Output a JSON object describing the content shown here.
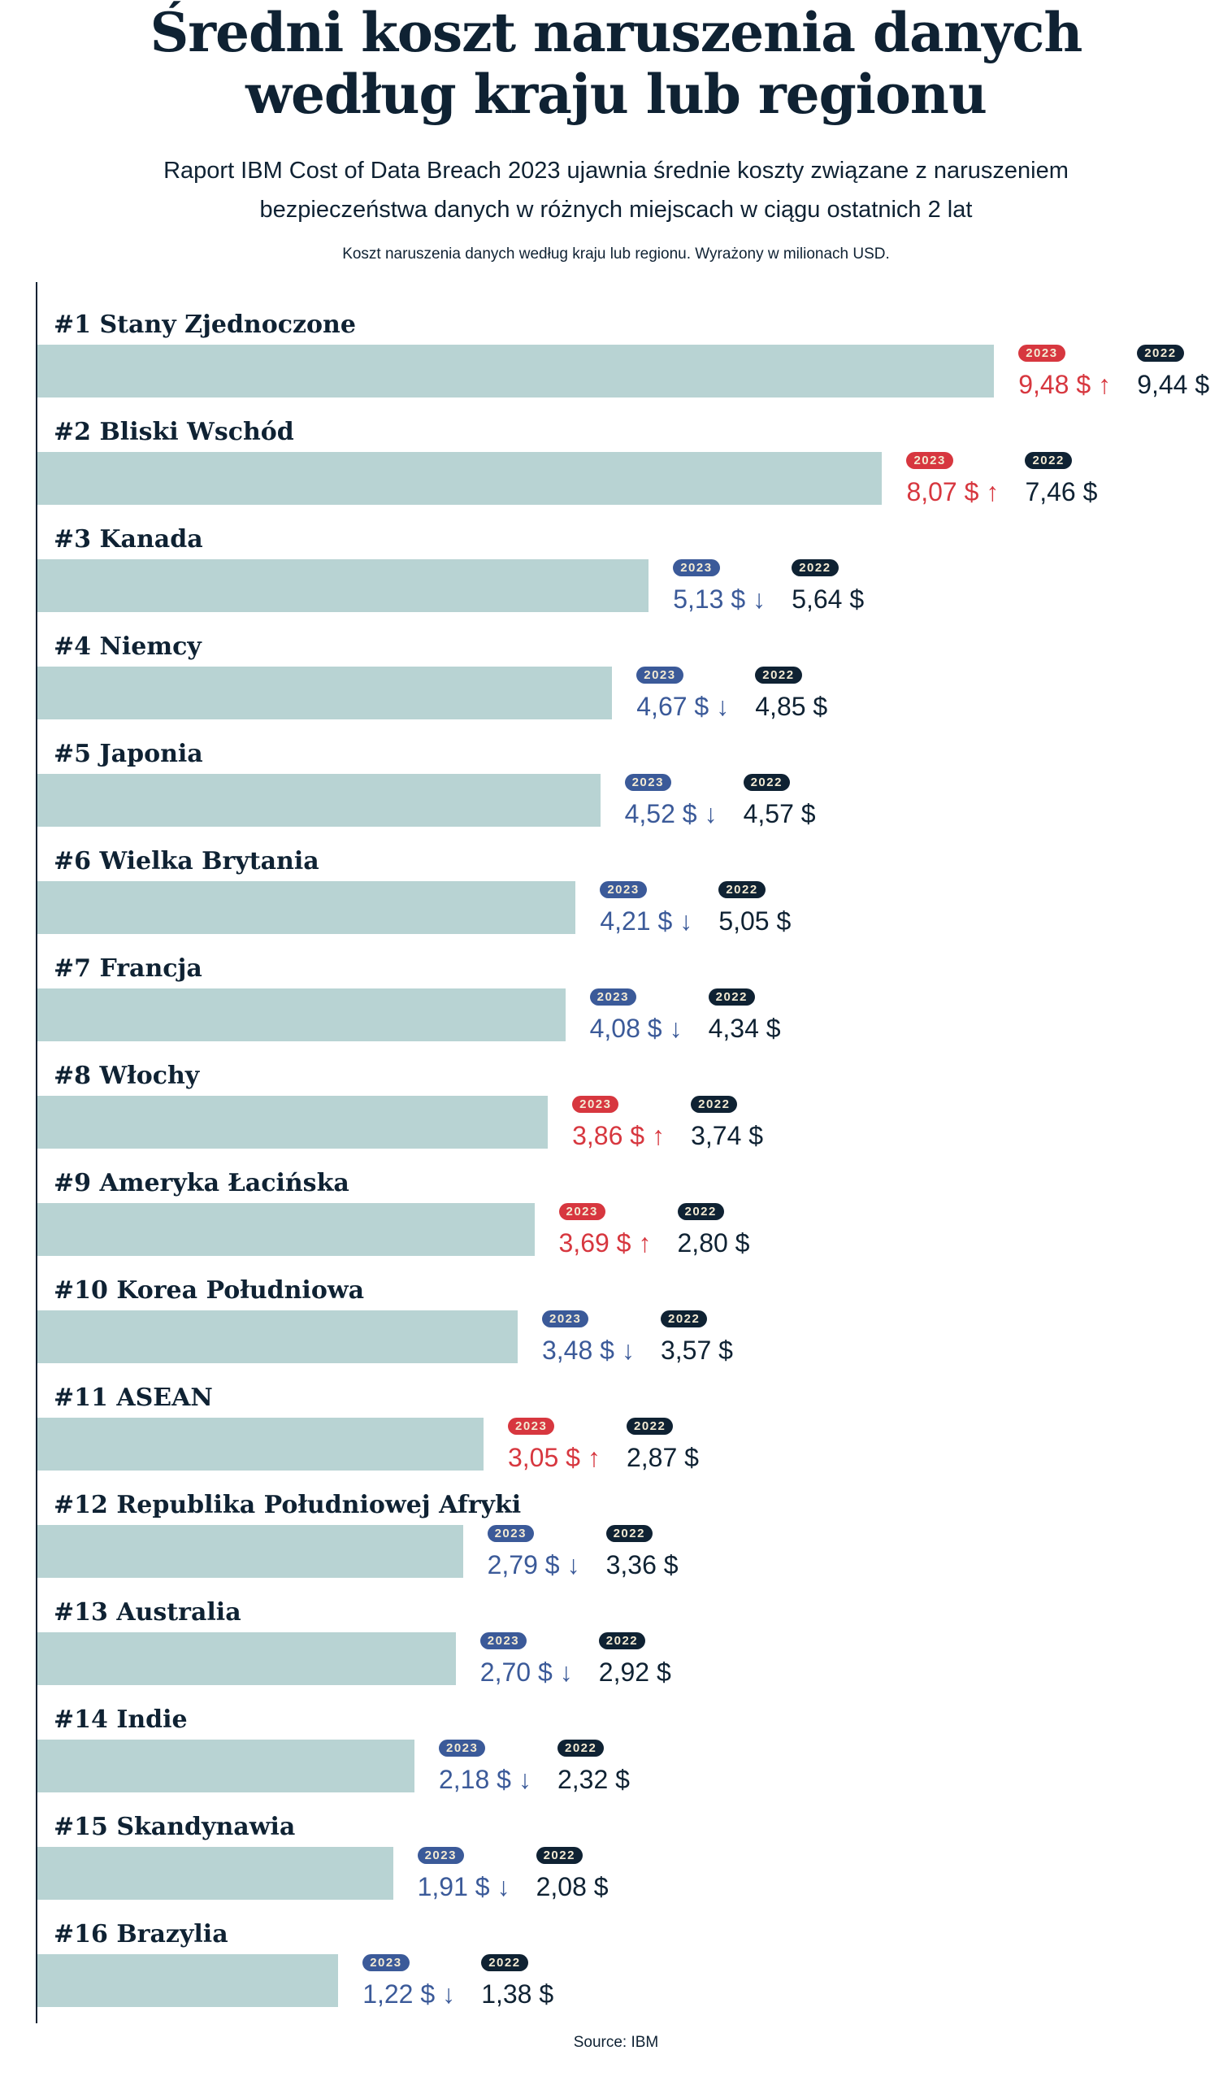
{
  "title_line1": "Średni koszt naruszenia danych",
  "title_line2": "według kraju lub regionu",
  "subtitle_line1": "Raport IBM Cost of Data Breach 2023 ujawnia średnie koszty związane z naruszeniem",
  "subtitle_line2": "bezpieczeństwa danych w różnych miejscach w ciągu ostatnich 2 lat",
  "caption": "Koszt naruszenia danych według kraju lub regionu. Wyrażony w milionach USD.",
  "source": "Source: IBM",
  "colors": {
    "bar": "#b8d3d3",
    "up": "#d7373f",
    "down": "#3b5a99",
    "prev": "#0f2233"
  },
  "chart_data": {
    "type": "bar",
    "orientation": "horizontal",
    "badge_2023": "2023",
    "badge_2022": "2022",
    "currency": "$",
    "categories": [
      "#1 Stany Zjednoczone",
      "#2 Bliski Wschód",
      "#3 Kanada",
      "#4 Niemcy",
      "#5 Japonia",
      "#6 Wielka Brytania",
      "#7 Francja",
      "#8 Włochy",
      "#9 Ameryka Łacińska",
      "#10 Korea Południowa",
      "#11 ASEAN",
      "#12 Republika Południowej Afryki",
      "#13 Australia",
      "#14 Indie",
      "#15 Skandynawia",
      "#16 Brazylia"
    ],
    "series": [
      {
        "name": "2023",
        "values": [
          9.48,
          8.07,
          5.13,
          4.67,
          4.52,
          4.21,
          4.08,
          3.86,
          3.69,
          3.48,
          3.05,
          2.79,
          2.7,
          2.18,
          1.91,
          1.22
        ],
        "labels": [
          "9,48",
          "8,07",
          "5,13",
          "4,67",
          "4,52",
          "4,21",
          "4,08",
          "3,86",
          "3,69",
          "3,48",
          "3,05",
          "2,79",
          "2,70",
          "2,18",
          "1,91",
          "1,22"
        ]
      },
      {
        "name": "2022",
        "values": [
          9.44,
          7.46,
          5.64,
          4.85,
          4.57,
          5.05,
          4.34,
          3.74,
          2.8,
          3.57,
          2.87,
          3.36,
          2.92,
          2.32,
          2.08,
          1.38
        ],
        "labels": [
          "9,44",
          "7,46",
          "5,64",
          "4,85",
          "4,57",
          "5,05",
          "4,34",
          "3,74",
          "2,80",
          "3,57",
          "2,87",
          "3,36",
          "2,92",
          "2,32",
          "2,08",
          "1,38"
        ]
      }
    ]
  }
}
